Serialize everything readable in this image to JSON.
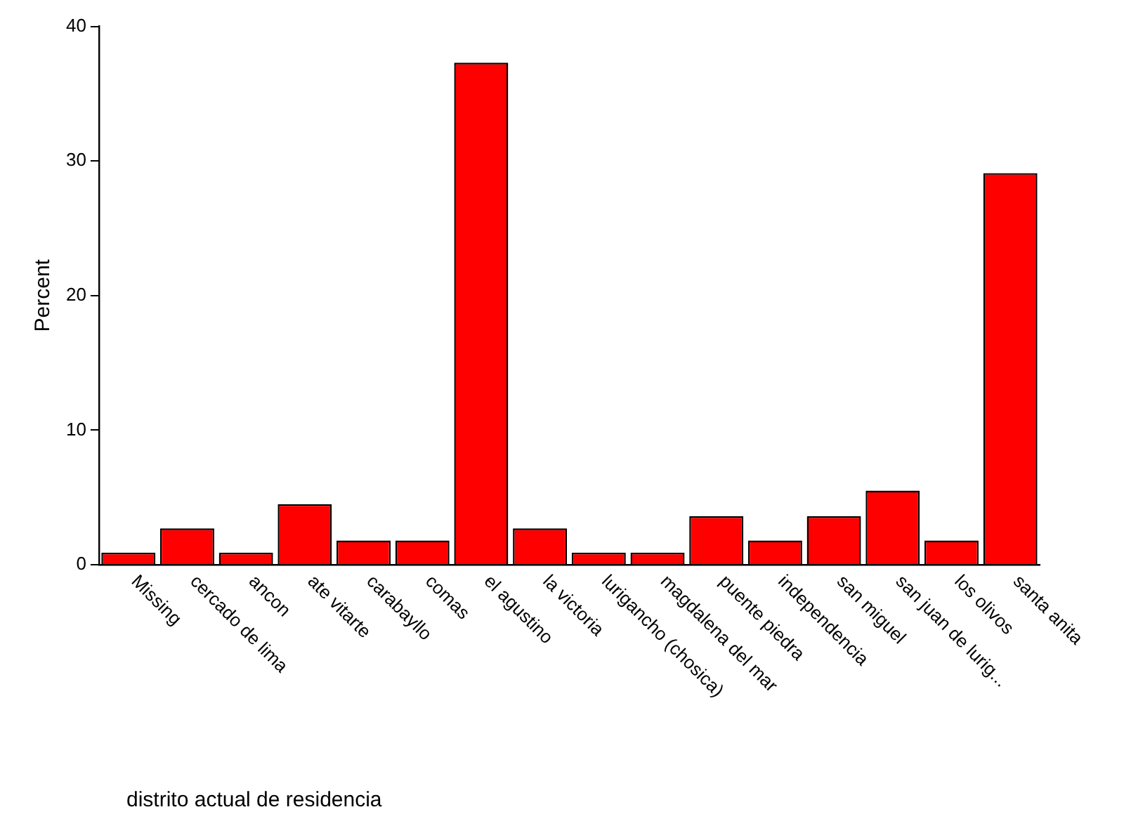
{
  "chart_data": {
    "type": "bar",
    "xlabel": "distrito actual de residencia",
    "ylabel": "Percent",
    "categories": [
      "Missing",
      "cercado de lima",
      "ancon",
      "ate vitarte",
      "carabayllo",
      "comas",
      "el agustino",
      "la victoria",
      "lurigancho (chosica)",
      "magdalena del mar",
      "puente piedra",
      "independencia",
      "san miguel",
      "san juan de lurig...",
      "los olivos",
      "santa anita"
    ],
    "values": [
      0.9,
      2.7,
      0.9,
      4.5,
      1.8,
      1.8,
      37.3,
      2.7,
      0.9,
      0.9,
      3.6,
      1.8,
      3.6,
      5.5,
      1.8,
      29.1
    ],
    "color": "#ff0000",
    "ylim": [
      0,
      40
    ],
    "yticks": [
      0,
      10,
      20,
      30,
      40
    ],
    "grid": false,
    "legend": false
  }
}
